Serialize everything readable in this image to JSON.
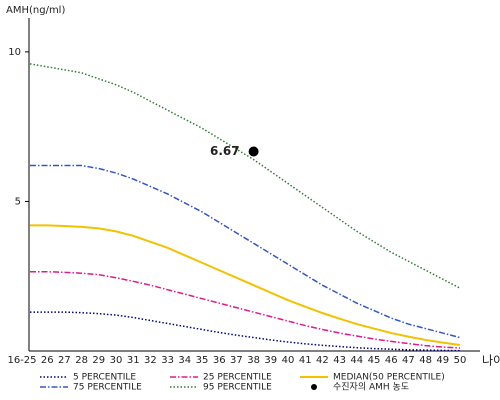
{
  "chart_data": {
    "type": "line",
    "y_label": "AMH(ng/ml)",
    "x_label": "나이",
    "categories": [
      "16-25",
      "26",
      "27",
      "28",
      "29",
      "30",
      "31",
      "32",
      "33",
      "34",
      "35",
      "36",
      "37",
      "38",
      "39",
      "40",
      "41",
      "42",
      "43",
      "44",
      "45",
      "46",
      "47",
      "48",
      "49",
      "50"
    ],
    "ylim": [
      0,
      11.4
    ],
    "yticks": [
      5,
      10
    ],
    "series": [
      {
        "name": "5 PERCENTILE",
        "color": "#000080",
        "style": "dotted",
        "values": [
          1.3,
          1.3,
          1.3,
          1.28,
          1.25,
          1.2,
          1.12,
          1.02,
          0.92,
          0.82,
          0.72,
          0.62,
          0.53,
          0.45,
          0.37,
          0.3,
          0.24,
          0.19,
          0.15,
          0.11,
          0.08,
          0.06,
          0.04,
          0.03,
          0.02,
          0.01
        ]
      },
      {
        "name": "25 PERCENTILE",
        "color": "#e0198c",
        "style": "dashdot",
        "values": [
          2.65,
          2.65,
          2.63,
          2.6,
          2.55,
          2.45,
          2.33,
          2.2,
          2.05,
          1.9,
          1.75,
          1.6,
          1.45,
          1.3,
          1.15,
          1.0,
          0.85,
          0.72,
          0.6,
          0.5,
          0.4,
          0.32,
          0.25,
          0.18,
          0.13,
          0.1
        ]
      },
      {
        "name": "MEDIAN(50 PERCENTILE)",
        "color": "#f2c200",
        "style": "solid",
        "values": [
          4.2,
          4.2,
          4.18,
          4.15,
          4.1,
          4.0,
          3.85,
          3.65,
          3.45,
          3.2,
          2.95,
          2.7,
          2.45,
          2.2,
          1.95,
          1.7,
          1.48,
          1.27,
          1.08,
          0.9,
          0.75,
          0.6,
          0.48,
          0.37,
          0.28,
          0.2
        ]
      },
      {
        "name": "75 PERCENTILE",
        "color": "#3355cc",
        "style": "dashdot",
        "values": [
          6.2,
          6.2,
          6.2,
          6.2,
          6.1,
          5.95,
          5.75,
          5.5,
          5.25,
          4.95,
          4.65,
          4.3,
          3.95,
          3.6,
          3.25,
          2.9,
          2.55,
          2.2,
          1.9,
          1.6,
          1.35,
          1.1,
          0.9,
          0.75,
          0.6,
          0.45
        ]
      },
      {
        "name": "95 PERCENTILE",
        "color": "#2e7d32",
        "style": "dotted",
        "values": [
          9.6,
          9.5,
          9.4,
          9.3,
          9.1,
          8.9,
          8.65,
          8.35,
          8.05,
          7.75,
          7.45,
          7.1,
          6.75,
          6.4,
          6.0,
          5.6,
          5.2,
          4.8,
          4.4,
          4.0,
          3.65,
          3.3,
          3.0,
          2.7,
          2.4,
          2.1
        ]
      }
    ],
    "point": {
      "name": "수진자의 AMH 농도",
      "x": "38",
      "value": 6.67,
      "color": "#000000"
    }
  }
}
